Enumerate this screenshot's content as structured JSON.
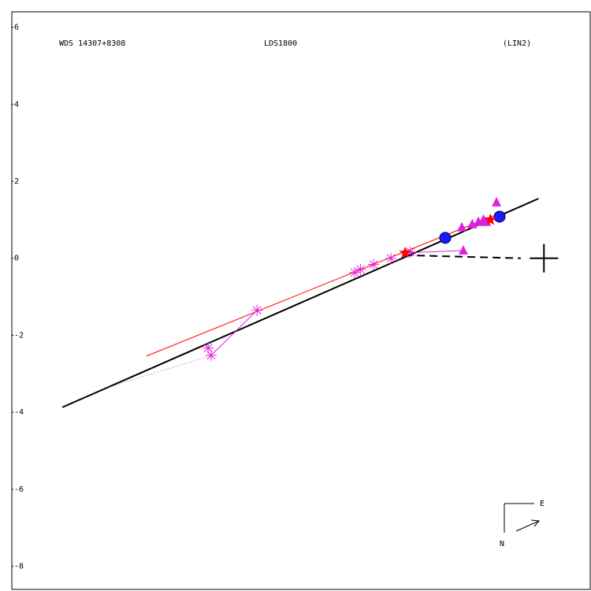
{
  "chart_data": {
    "type": "scatter",
    "texts": [
      "WDS 14307+8308",
      "LDS1800",
      "(LIN2)"
    ],
    "compass": [
      "E",
      "N"
    ],
    "xlim": [
      -13.8,
      1.2
    ],
    "ylim": [
      -8.6,
      6.4
    ],
    "yticks": [
      6,
      4,
      2,
      0,
      -2,
      -4,
      -6,
      -8
    ],
    "series": [
      {
        "color": "#000000",
        "line": "solid",
        "width": 2,
        "x": [
          -12.49,
          -0.14
        ],
        "values": [
          -3.87,
          1.55
        ]
      },
      {
        "color": "#000000",
        "line": "dashed",
        "width": 2,
        "x": [
          -3.62,
          -0.6
        ],
        "values": [
          0.08,
          0
        ]
      },
      {
        "color": "#ff0000",
        "line": "solid",
        "width": 1,
        "x": [
          -10.31,
          -1.31
        ],
        "values": [
          -2.54,
          1.1
        ]
      },
      {
        "color": "#e020e0",
        "line": "dotted",
        "width": 1,
        "x": [
          -11.43,
          -8.67
        ],
        "values": [
          -3.39,
          -2.54
        ]
      },
      {
        "color": "#e020e0",
        "line": "solid",
        "width": 1,
        "x": [
          -8.63,
          -7.44
        ],
        "values": [
          -2.52,
          -1.35
        ]
      },
      {
        "color": "#e020e0",
        "line": "solid",
        "width": 1,
        "x": [
          -3.6,
          -2.09
        ],
        "values": [
          0.14,
          0.2
        ]
      },
      {
        "color": "#e020e0",
        "marker": "asterisk",
        "x": [
          -8.63,
          -8.71,
          -7.44,
          -4.91,
          -4.76,
          -4.42,
          -3.97,
          -3.46
        ],
        "values": [
          -2.52,
          -2.33,
          -1.35,
          -0.37,
          -0.29,
          -0.16,
          0.0,
          0.16
        ]
      },
      {
        "color": "#e020e0",
        "marker": "triangle",
        "x": [
          -2.09,
          -2.13,
          -1.86,
          -1.7,
          -1.57,
          -1.49,
          -1.23
        ],
        "values": [
          0.2,
          0.8,
          0.88,
          0.94,
          1.0,
          0.94,
          1.45
        ]
      },
      {
        "color": "#1a1aff",
        "marker": "circle",
        "x": [
          -2.56,
          -1.15
        ],
        "values": [
          0.53,
          1.08
        ]
      },
      {
        "color": "#ff0000",
        "marker": "star",
        "x": [
          -3.6,
          -1.39
        ],
        "values": [
          0.14,
          1.0
        ]
      },
      {
        "color": "#000000",
        "marker": "cross",
        "x": [
          0
        ],
        "values": [
          0
        ]
      }
    ]
  }
}
